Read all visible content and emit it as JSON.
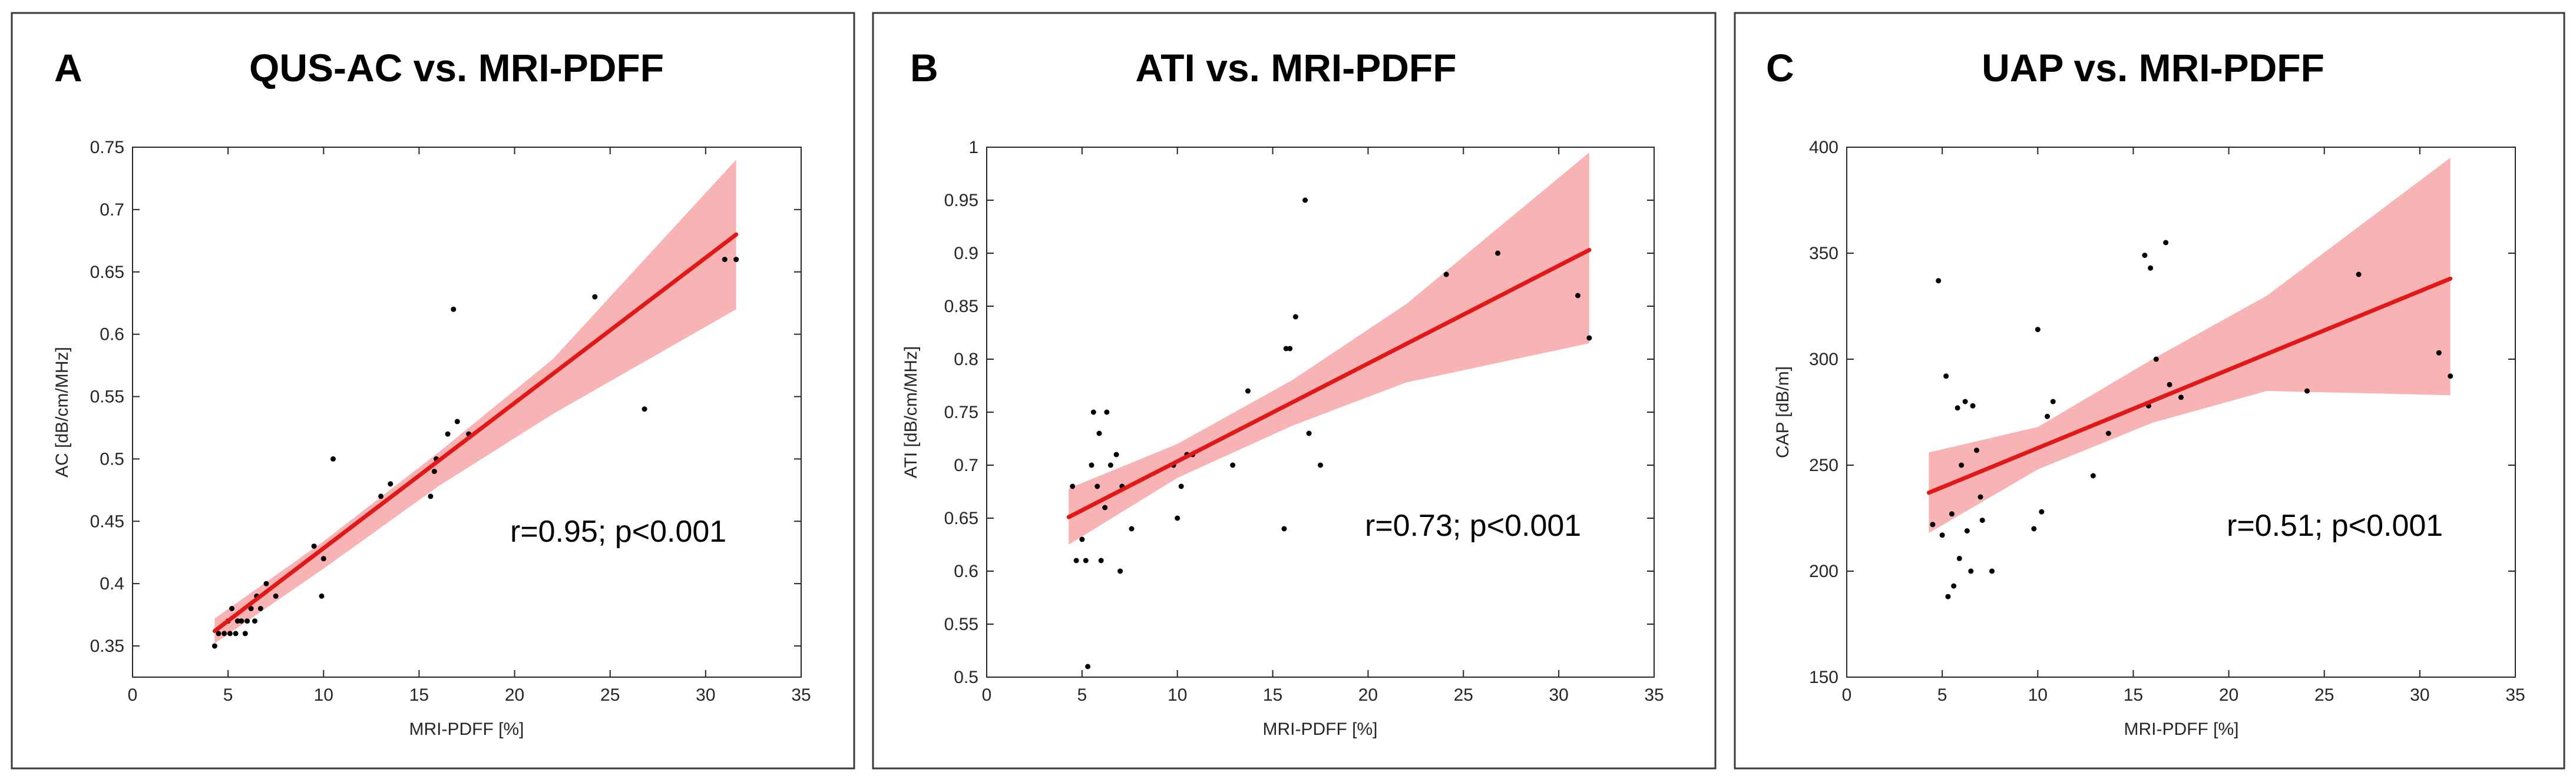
{
  "chart_data": [
    {
      "type": "scatter",
      "letter": "A",
      "title": "QUS-AC vs. MRI-PDFF",
      "xlabel": "MRI-PDFF [%]",
      "ylabel": "AC [dB/cm/MHz]",
      "annotation": "r=0.95; p<0.001",
      "xlim": [
        0,
        35
      ],
      "ylim": [
        0.325,
        0.75
      ],
      "xticks": [
        0,
        5,
        10,
        15,
        20,
        25,
        30,
        35
      ],
      "yticks": [
        0.35,
        0.4,
        0.45,
        0.5,
        0.55,
        0.6,
        0.65,
        0.7,
        0.75
      ],
      "points": [
        [
          4.3,
          0.35
        ],
        [
          4.5,
          0.36
        ],
        [
          4.8,
          0.36
        ],
        [
          5.0,
          0.37
        ],
        [
          5.1,
          0.36
        ],
        [
          5.2,
          0.38
        ],
        [
          5.4,
          0.36
        ],
        [
          5.5,
          0.37
        ],
        [
          5.7,
          0.37
        ],
        [
          5.9,
          0.36
        ],
        [
          6.0,
          0.37
        ],
        [
          6.2,
          0.38
        ],
        [
          6.4,
          0.37
        ],
        [
          6.5,
          0.39
        ],
        [
          6.7,
          0.38
        ],
        [
          7.0,
          0.4
        ],
        [
          7.5,
          0.39
        ],
        [
          9.5,
          0.43
        ],
        [
          9.9,
          0.39
        ],
        [
          10.0,
          0.42
        ],
        [
          10.5,
          0.5
        ],
        [
          13.0,
          0.47
        ],
        [
          13.5,
          0.48
        ],
        [
          15.6,
          0.47
        ],
        [
          15.8,
          0.49
        ],
        [
          15.9,
          0.5
        ],
        [
          16.5,
          0.52
        ],
        [
          16.8,
          0.62
        ],
        [
          17.0,
          0.53
        ],
        [
          17.6,
          0.52
        ],
        [
          24.2,
          0.63
        ],
        [
          26.8,
          0.54
        ],
        [
          31.0,
          0.66
        ],
        [
          31.6,
          0.66
        ]
      ],
      "fit": {
        "x": [
          4.3,
          31.6
        ],
        "y": [
          0.362,
          0.68
        ]
      },
      "ci": {
        "x": [
          4.3,
          10,
          16,
          22,
          31.6
        ],
        "lower": [
          0.352,
          0.412,
          0.478,
          0.536,
          0.62
        ],
        "upper": [
          0.372,
          0.434,
          0.505,
          0.58,
          0.74
        ]
      }
    },
    {
      "type": "scatter",
      "letter": "B",
      "title": "ATI vs. MRI-PDFF",
      "xlabel": "MRI-PDFF [%]",
      "ylabel": "ATI [dB/cm/MHz]",
      "annotation": "r=0.73; p<0.001",
      "xlim": [
        0,
        35
      ],
      "ylim": [
        0.5,
        1.0
      ],
      "xticks": [
        0,
        5,
        10,
        15,
        20,
        25,
        30,
        35
      ],
      "yticks": [
        0.5,
        0.55,
        0.6,
        0.65,
        0.7,
        0.75,
        0.8,
        0.85,
        0.9,
        0.95,
        1
      ],
      "ytickLabels": [
        "0.5",
        "0.55",
        "0.6",
        "0.65",
        "0.7",
        "0.75",
        "0.8",
        "0.85",
        "0.9",
        "0.95",
        "1"
      ],
      "points": [
        [
          4.5,
          0.68
        ],
        [
          4.7,
          0.61
        ],
        [
          5.0,
          0.63
        ],
        [
          5.2,
          0.61
        ],
        [
          5.3,
          0.51
        ],
        [
          5.5,
          0.7
        ],
        [
          5.6,
          0.75
        ],
        [
          5.8,
          0.68
        ],
        [
          5.9,
          0.73
        ],
        [
          6.0,
          0.61
        ],
        [
          6.2,
          0.66
        ],
        [
          6.3,
          0.75
        ],
        [
          6.5,
          0.7
        ],
        [
          6.8,
          0.71
        ],
        [
          7.0,
          0.6
        ],
        [
          7.1,
          0.68
        ],
        [
          7.6,
          0.64
        ],
        [
          9.8,
          0.7
        ],
        [
          10.0,
          0.65
        ],
        [
          10.2,
          0.68
        ],
        [
          10.5,
          0.71
        ],
        [
          10.8,
          0.71
        ],
        [
          12.9,
          0.7
        ],
        [
          13.7,
          0.77
        ],
        [
          15.6,
          0.64
        ],
        [
          15.7,
          0.81
        ],
        [
          15.9,
          0.81
        ],
        [
          16.2,
          0.84
        ],
        [
          16.7,
          0.95
        ],
        [
          16.9,
          0.73
        ],
        [
          17.5,
          0.7
        ],
        [
          24.1,
          0.88
        ],
        [
          26.8,
          0.9
        ],
        [
          31.0,
          0.86
        ],
        [
          31.6,
          0.82
        ]
      ],
      "fit": {
        "x": [
          4.3,
          31.6
        ],
        "y": [
          0.651,
          0.903
        ]
      },
      "ci": {
        "x": [
          4.3,
          10,
          16,
          22,
          31.6
        ],
        "lower": [
          0.625,
          0.688,
          0.737,
          0.778,
          0.815
        ],
        "upper": [
          0.678,
          0.72,
          0.78,
          0.852,
          0.995
        ]
      }
    },
    {
      "type": "scatter",
      "letter": "C",
      "title": "UAP vs. MRI-PDFF",
      "xlabel": "MRI-PDFF [%]",
      "ylabel": "CAP [dB/m]",
      "annotation": "r=0.51; p<0.001",
      "xlim": [
        0,
        35
      ],
      "ylim": [
        150,
        400
      ],
      "xticks": [
        0,
        5,
        10,
        15,
        20,
        25,
        30,
        35
      ],
      "yticks": [
        150,
        200,
        250,
        300,
        350,
        400
      ],
      "points": [
        [
          4.5,
          222
        ],
        [
          4.8,
          337
        ],
        [
          5.0,
          217
        ],
        [
          5.2,
          292
        ],
        [
          5.3,
          188
        ],
        [
          5.5,
          227
        ],
        [
          5.6,
          193
        ],
        [
          5.8,
          277
        ],
        [
          5.9,
          206
        ],
        [
          6.0,
          250
        ],
        [
          6.2,
          280
        ],
        [
          6.3,
          219
        ],
        [
          6.5,
          200
        ],
        [
          6.6,
          278
        ],
        [
          6.8,
          257
        ],
        [
          7.0,
          235
        ],
        [
          7.1,
          224
        ],
        [
          7.6,
          200
        ],
        [
          9.8,
          220
        ],
        [
          10.0,
          314
        ],
        [
          10.2,
          228
        ],
        [
          10.5,
          273
        ],
        [
          10.8,
          280
        ],
        [
          12.9,
          245
        ],
        [
          13.7,
          265
        ],
        [
          15.6,
          349
        ],
        [
          15.8,
          278
        ],
        [
          15.9,
          343
        ],
        [
          16.2,
          300
        ],
        [
          16.7,
          355
        ],
        [
          16.9,
          288
        ],
        [
          17.5,
          282
        ],
        [
          24.1,
          285
        ],
        [
          26.8,
          340
        ],
        [
          31.0,
          303
        ],
        [
          31.6,
          292
        ]
      ],
      "fit": {
        "x": [
          4.3,
          31.6
        ],
        "y": [
          237,
          338
        ]
      },
      "ci": {
        "x": [
          4.3,
          10,
          16,
          22,
          31.6
        ],
        "lower": [
          218,
          248,
          270,
          285,
          283
        ],
        "upper": [
          256,
          268,
          300,
          330,
          395
        ]
      }
    }
  ]
}
